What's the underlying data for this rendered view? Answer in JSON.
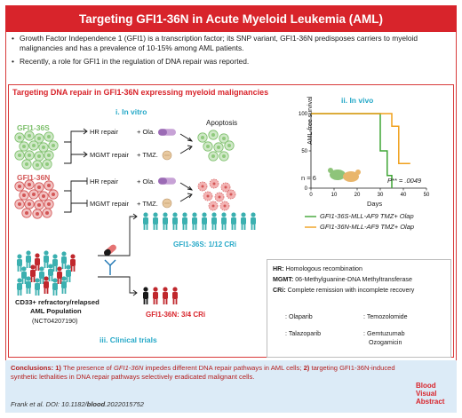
{
  "title": "Targeting GFI1-36N in Acute Myeloid Leukemia (AML)",
  "intro": [
    "Growth Factor Independence 1 (GFI1) is a transcription factor; its SNP variant, GFI1-36N predisposes carriers to myeloid malignancies and has a prevalence of 10-15% among AML patients.",
    "Recently, a role for GFI1 in the regulation of DNA repair was reported."
  ],
  "section_title": "Targeting DNA repair in GFI1-36N expressing myeloid malignancies",
  "in_vitro": {
    "label": "i. In vitro",
    "gfi36s": "GFI1-36S",
    "gfi36n": "GFI1-36N",
    "hr_repair": "HR repair",
    "mgmt_repair": "MGMT repair",
    "ola": "+ Ola.",
    "tmz": "+ TMZ.",
    "apoptosis": "Apoptosis"
  },
  "in_vivo": {
    "label": "ii. In vivo",
    "ylabel": "AML-free survival",
    "xlabel": "Days",
    "n_label": "n = 6",
    "p_label": "P** = .0049",
    "legend_s": "GFI1-36S-MLL-AF9 TMZ+ Olap",
    "legend_n": "GFI1-36N-MLL-AF9 TMZ+ Olap",
    "color_s": "#3fa535",
    "color_n": "#f0a01c"
  },
  "chart_data": {
    "type": "line",
    "title": "",
    "xlabel": "Days",
    "ylabel": "AML-free survival",
    "xlim": [
      0,
      50
    ],
    "ylim": [
      0,
      100
    ],
    "xticks": [
      "0",
      "10",
      "20",
      "30",
      "40",
      "50"
    ],
    "yticks": [
      "0",
      "50",
      "100"
    ],
    "series": [
      {
        "name": "GFI1-36S-MLL-AF9 TMZ+ Olap",
        "color": "#3fa535",
        "x": [
          0,
          30,
          30,
          33,
          33,
          35,
          35
        ],
        "y": [
          100,
          100,
          50,
          50,
          17,
          17,
          0
        ]
      },
      {
        "name": "GFI1-36N-MLL-AF9 TMZ+ Olap",
        "color": "#f0a01c",
        "x": [
          0,
          35,
          35,
          38,
          38,
          41,
          41,
          43
        ],
        "y": [
          100,
          100,
          83,
          83,
          33,
          33,
          33,
          33
        ]
      }
    ]
  },
  "clinical": {
    "label": "iii. Clinical trials",
    "population_1": "CD33+ refractory/relapsed",
    "population_2": "AML Population",
    "trial_id": "(NCT04207190)",
    "result_s": "GFI1-36S: 1/12 CRi",
    "result_n": "GFI1-36N: 3/4 CRi"
  },
  "legend": {
    "hr_key": "HR:",
    "hr_def": "Homologous recombination",
    "mgmt_key": "MGMT:",
    "mgmt_def": "06-Methylguanine-DNA Methyltransferase",
    "cri_key": "CRi:",
    "cri_def": "Complete remission with incomplete recovery",
    "olaparib": ": Olaparib",
    "temozolomide": ": Temozolomide",
    "talazoparib": ": Talazoparib",
    "gemtuzumab": ": Gemtuzumab",
    "ozogamicin": "Ozogamicin"
  },
  "conclusion": {
    "lead": "Conclusions: 1)",
    "part1a": "The presence of",
    "part1b": "GFI1-36N",
    "part1c": "impedes different DNA repair pathways in AML cells;",
    "num2": "2)",
    "part2": "targeting GFI1-36N-induced synthetic lethalities in DNA repair pathways selectively eradicated malignant cells."
  },
  "citation": {
    "prefix": "Frank et al. DOI: 10.1182/",
    "journal": "blood",
    "suffix": ".2022015752"
  },
  "badge": [
    "Blood",
    "Visual",
    "Abstract"
  ]
}
